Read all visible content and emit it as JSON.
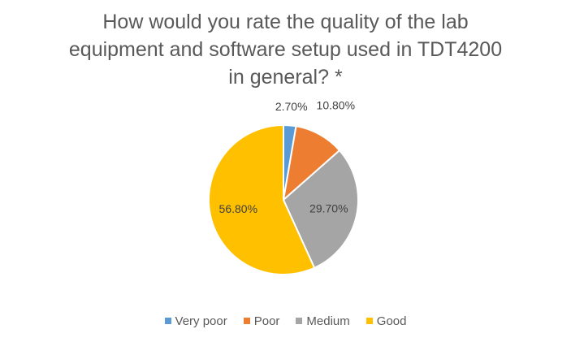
{
  "chart_data": {
    "type": "pie",
    "title": "How would you rate the quality of the lab equipment and software setup used in TDT4200 in general? *",
    "title_lines": [
      "How would you rate the quality of the lab",
      "equipment and software setup used in TDT4200",
      "in general? *"
    ],
    "categories": [
      "Very poor",
      "Poor",
      "Medium",
      "Good"
    ],
    "values": [
      2.7,
      10.8,
      29.7,
      56.8
    ],
    "data_labels": [
      "2.70%",
      "10.80%",
      "29.70%",
      "56.80%"
    ],
    "colors": [
      "#5B9BD5",
      "#ED7D31",
      "#A5A5A5",
      "#FFC000"
    ],
    "legend_position": "bottom",
    "start_angle": "12 o'clock, clockwise"
  }
}
